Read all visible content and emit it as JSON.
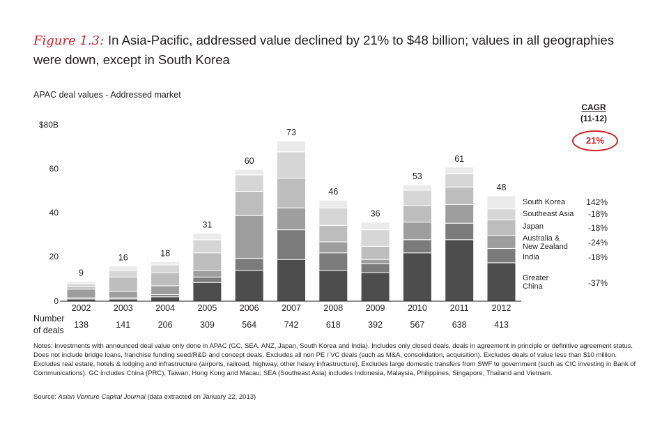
{
  "title": {
    "figure_label": "Figure 1.3:",
    "text": "In Asia-Pacific, addressed value declined by 21% to $48 billion; values in all geographies were down, except in South Korea"
  },
  "subtitle": "APAC deal values - Addressed market",
  "y_ticks": [
    "$80B",
    "60",
    "40",
    "20",
    "0"
  ],
  "cagr": {
    "header": "CAGR",
    "period": "(11-12)",
    "total": "21%",
    "total_color": "#cc2229"
  },
  "number_of_deals_label": [
    "Number",
    "of deals"
  ],
  "notes": "Notes: Investments with announced deal value only done in APAC (GC, SEA, ANZ, Japan, South Korea and India). Includes only closed deals, deals in agreement in principle or definitive agreement status. Does not include bridge loans, franchise funding seed/R&D and concept deals. Excludes all non PE / VC deals (such as M&A, consolidation, acquisition). Excludes deals of value less than $10 million. Excludes real estate, hotels & lodging and infrastructure (airports, railroad, highway, other heavy infrastructure). Excludes large domestic transfers from SWF to government (such as CIC investing in Bank of Communications). GC includes China (PRC), Taiwan, Hong Kong and Macau; SEA (Southeast Asia) includes Indonesia, Malaysia, Philippines, Singapore, Thailand and Vietnam.",
  "source": {
    "prefix": "Source: ",
    "publication": "Asian Venture Capital Journal",
    "suffix": " (data extracted on January 22, 2013)"
  },
  "chart_data": {
    "type": "bar",
    "stacked": true,
    "categories": [
      "2002",
      "2003",
      "2004",
      "2005",
      "2006",
      "2007",
      "2008",
      "2009",
      "2010",
      "2011",
      "2012"
    ],
    "totals": [
      9,
      16,
      18,
      31,
      60,
      73,
      46,
      36,
      53,
      61,
      48
    ],
    "number_of_deals": [
      138,
      141,
      206,
      309,
      564,
      742,
      618,
      392,
      567,
      638,
      413
    ],
    "ylim": [
      0,
      80
    ],
    "series": [
      {
        "name": "Greater China",
        "cagr": "-37%",
        "color": "#4d4d4d",
        "values": [
          1,
          1,
          2,
          8.5,
          14,
          19,
          14,
          13,
          22,
          28,
          17.5
        ]
      },
      {
        "name": "India",
        "cagr": "-18%",
        "color": "#7b7b7b",
        "values": [
          0.5,
          0.5,
          1,
          2.5,
          5.5,
          13.5,
          8,
          4,
          6,
          7.5,
          6.5
        ]
      },
      {
        "name": "Australia & New Zealand",
        "cagr": "-24%",
        "color": "#9e9e9e",
        "values": [
          4,
          3,
          4,
          3,
          19.5,
          10,
          5,
          2,
          8,
          8.5,
          6
        ]
      },
      {
        "name": "Japan",
        "cagr": "-18%",
        "color": "#bdbdbd",
        "values": [
          1,
          6.5,
          6,
          8,
          11,
          13.5,
          7.5,
          6,
          7.5,
          8,
          7
        ]
      },
      {
        "name": "Southeast Asia",
        "cagr": "-18%",
        "color": "#d6d6d6",
        "values": [
          1.5,
          3,
          3.5,
          6,
          7.5,
          12,
          8,
          7.5,
          7,
          6,
          5
        ]
      },
      {
        "name": "South Korea",
        "cagr": "142%",
        "color": "#ebebeb",
        "values": [
          1,
          2,
          1.5,
          3,
          2.5,
          5,
          3.5,
          3.5,
          2.5,
          3,
          6
        ]
      }
    ],
    "legend_labels": [
      {
        "text": "South Korea",
        "cagr": "142%"
      },
      {
        "text": "Southeast Asia",
        "cagr": "-18%"
      },
      {
        "text": "Japan",
        "cagr": "-18%"
      },
      {
        "text": "Australia & New Zealand",
        "cagr": "-24%"
      },
      {
        "text": "India",
        "cagr": "-18%"
      },
      {
        "text": "Greater China",
        "cagr": "-37%"
      }
    ]
  }
}
